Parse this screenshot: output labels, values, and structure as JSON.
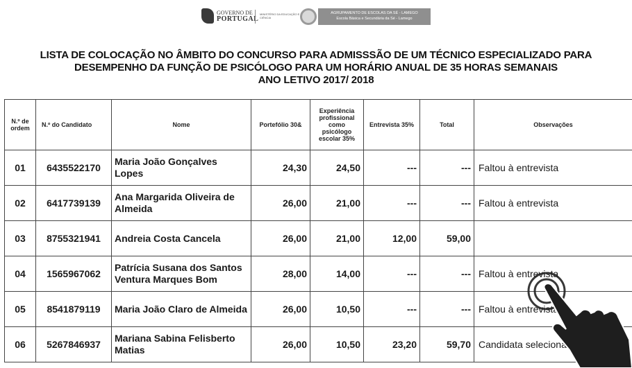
{
  "header": {
    "gov_logo_line1": "GOVERNO DE",
    "gov_logo_line2": "PORTUGAL",
    "ministry_text": "MINISTÉRIO DA EDUCAÇÃO E CIÊNCIA",
    "school_line1": "AGRUPAMENTO DE ESCOLAS DA SÉ - LAMEGO",
    "school_line2": "Escola Básica e Secundária da Sé - Lamego"
  },
  "title": {
    "line1": "LISTA DE COLOCAÇÃO NO ÂMBITO DO CONCURSO PARA ADMISSSÃO DE UM TÉCNICO ESPECIALIZADO PARA",
    "line2": "DESEMPENHO DA FUNÇÃO DE PSICÓLOGO  PARA UM HORÁRIO ANUAL DE 35 HORAS SEMANAIS",
    "line3": "ANO LETIVO 2017/ 2018"
  },
  "table": {
    "headers": {
      "ordem": "N.º de ordem",
      "candidato": "N.º do Candidato",
      "nome": "Nome",
      "portefolio": "Portefólio 30&",
      "experiencia": "Experiência profissional como psicólogo escolar 35%",
      "entrevista": "Entrevista 35%",
      "total": "Total",
      "observacoes": "Observações"
    },
    "rows": [
      {
        "ordem": "01",
        "candidato": "6435522170",
        "nome": "Maria João Gonçalves Lopes",
        "portefolio": "24,30",
        "experiencia": "24,50",
        "entrevista": "---",
        "total": "---",
        "observacoes": "Faltou à entrevista"
      },
      {
        "ordem": "02",
        "candidato": "6417739139",
        "nome": "Ana Margarida Oliveira de Almeida",
        "portefolio": "26,00",
        "experiencia": "21,00",
        "entrevista": "---",
        "total": "---",
        "observacoes": "Faltou à entrevista"
      },
      {
        "ordem": "03",
        "candidato": "8755321941",
        "nome": "Andreia Costa Cancela",
        "portefolio": "26,00",
        "experiencia": "21,00",
        "entrevista": "12,00",
        "total": "59,00",
        "observacoes": ""
      },
      {
        "ordem": "04",
        "candidato": "1565967062",
        "nome": "Patrícia Susana dos Santos Ventura Marques Bom",
        "portefolio": "28,00",
        "experiencia": "14,00",
        "entrevista": "---",
        "total": "---",
        "observacoes": "Faltou à entrevista"
      },
      {
        "ordem": "05",
        "candidato": "8541879119",
        "nome": "Maria João Claro de Almeida",
        "portefolio": "26,00",
        "experiencia": "10,50",
        "entrevista": "---",
        "total": "---",
        "observacoes": "Faltou à entrevista"
      },
      {
        "ordem": "06",
        "candidato": "5267846937",
        "nome": "Mariana Sabina Felisberto Matias",
        "portefolio": "26,00",
        "experiencia": "10,50",
        "entrevista": "23,20",
        "total": "59,70",
        "observacoes": "Candidata selecionada"
      }
    ]
  },
  "overlay": {
    "icon": "tap-hand-icon"
  }
}
